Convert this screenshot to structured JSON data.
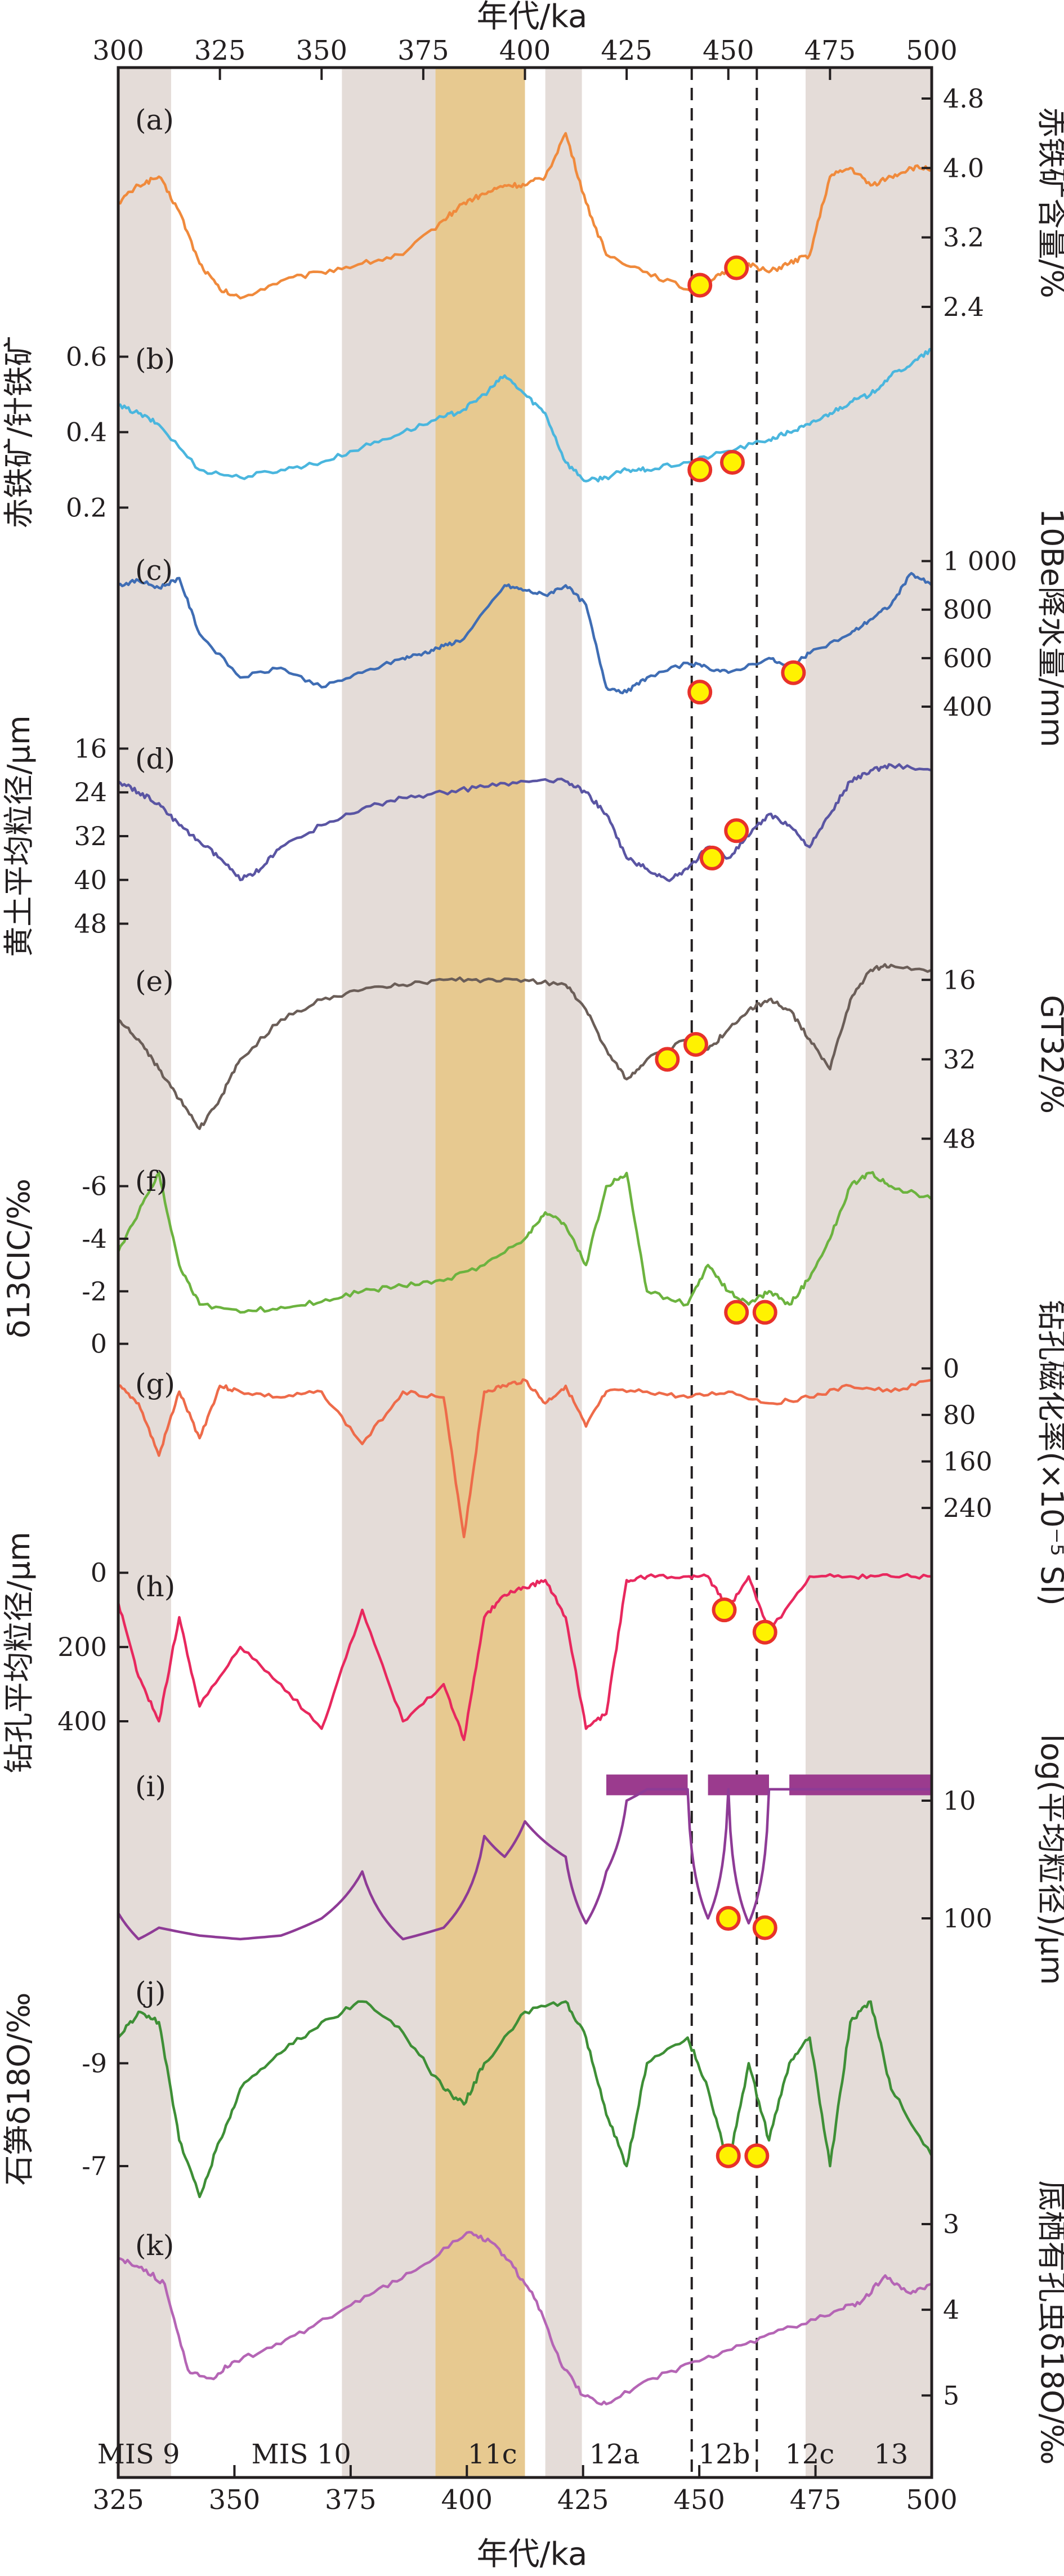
{
  "chart_data": {
    "type": "line",
    "title": "",
    "top_axis": {
      "label": "年代/ka",
      "range": [
        300,
        500
      ],
      "ticks": [
        "300",
        "325",
        "350",
        "375",
        "400",
        "425",
        "450",
        "475",
        "500"
      ],
      "tick_values": [
        300,
        325,
        350,
        375,
        400,
        425,
        450,
        475,
        500
      ]
    },
    "bottom_axis": {
      "label": "年代/ka",
      "range": [
        325,
        500
      ],
      "ticks": [
        "325",
        "350",
        "375",
        "400",
        "425",
        "450",
        "475",
        "500"
      ],
      "tick_values": [
        325,
        350,
        375,
        400,
        425,
        450,
        475,
        500
      ]
    },
    "shaded_bands": [
      {
        "name": "MIS 9",
        "type": "interglacial",
        "from": 300,
        "to": 313
      },
      {
        "name": "MIS 10",
        "type": "glacial",
        "from": 355,
        "to": 378
      },
      {
        "name": "11c",
        "type": "highlight",
        "from": 378,
        "to": 400
      },
      {
        "name": "12a",
        "type": "interglacial",
        "from": 405,
        "to": 414
      },
      {
        "name": "13",
        "type": "interglacial",
        "from": 469,
        "to": 500
      }
    ],
    "dashed_lines": [
      441,
      457
    ],
    "stage_labels": [
      "MIS 9",
      "MIS 10",
      "11c",
      "12a",
      "12b",
      "12c",
      "13"
    ],
    "series": [
      {
        "id": "a",
        "letter": "(a)",
        "name": "赤铁矿含量/%",
        "axis_side": "right",
        "color": "#f08a3c",
        "ticks": [
          "4.8",
          "4.0",
          "3.2",
          "2.4"
        ],
        "tick_values": [
          4.8,
          4.0,
          3.2,
          2.4
        ],
        "x": [
          300,
          305,
          310,
          315,
          320,
          325,
          330,
          340,
          350,
          360,
          370,
          380,
          385,
          390,
          395,
          400,
          405,
          410,
          415,
          420,
          430,
          440,
          445,
          450,
          455,
          460,
          465,
          470,
          475,
          480,
          485,
          490,
          495,
          500
        ],
        "values": [
          3.6,
          3.8,
          3.9,
          3.5,
          2.9,
          2.6,
          2.5,
          2.7,
          2.8,
          2.9,
          3.0,
          3.4,
          3.6,
          3.7,
          3.8,
          3.8,
          3.9,
          4.4,
          3.6,
          3.0,
          2.8,
          2.6,
          2.7,
          2.8,
          2.9,
          2.8,
          2.9,
          3.0,
          3.9,
          4.0,
          3.8,
          3.9,
          4.0,
          4.0
        ],
        "markers": [
          {
            "x": 443,
            "v": 2.65
          },
          {
            "x": 452,
            "v": 2.85
          }
        ]
      },
      {
        "id": "b",
        "letter": "(b)",
        "name": "赤铁矿/针铁矿",
        "axis_side": "left",
        "color": "#4ab6de",
        "ticks": [
          "0.6",
          "0.4",
          "0.2"
        ],
        "tick_values": [
          0.6,
          0.4,
          0.2
        ],
        "x": [
          300,
          305,
          310,
          320,
          330,
          340,
          350,
          360,
          370,
          380,
          385,
          390,
          395,
          400,
          405,
          410,
          415,
          420,
          425,
          430,
          440,
          450,
          460,
          465,
          470,
          475,
          480,
          485,
          490,
          495,
          500
        ],
        "values": [
          0.47,
          0.45,
          0.42,
          0.3,
          0.28,
          0.3,
          0.32,
          0.36,
          0.4,
          0.44,
          0.46,
          0.5,
          0.55,
          0.5,
          0.45,
          0.32,
          0.27,
          0.28,
          0.3,
          0.3,
          0.32,
          0.35,
          0.38,
          0.4,
          0.42,
          0.45,
          0.48,
          0.5,
          0.55,
          0.58,
          0.62
        ],
        "markers": [
          {
            "x": 443,
            "v": 0.3
          },
          {
            "x": 451,
            "v": 0.32
          }
        ]
      },
      {
        "id": "c",
        "letter": "(c)",
        "name": "10Be降水量/mm",
        "axis_side": "right",
        "color": "#3f6db4",
        "ticks": [
          "1 000",
          "800",
          "600",
          "400"
        ],
        "tick_values": [
          1000,
          800,
          600,
          400
        ],
        "x": [
          300,
          305,
          310,
          315,
          320,
          330,
          340,
          350,
          360,
          370,
          375,
          380,
          385,
          395,
          400,
          405,
          410,
          415,
          420,
          425,
          430,
          440,
          445,
          450,
          460,
          465,
          470,
          480,
          485,
          490,
          495,
          500
        ],
        "values": [
          900,
          920,
          890,
          930,
          700,
          520,
          560,
          480,
          540,
          600,
          620,
          650,
          680,
          900,
          880,
          860,
          900,
          820,
          480,
          460,
          520,
          580,
          560,
          540,
          600,
          560,
          620,
          700,
          760,
          820,
          950,
          900
        ],
        "markers": [
          {
            "x": 443,
            "v": 460
          },
          {
            "x": 466,
            "v": 540
          }
        ]
      },
      {
        "id": "d",
        "letter": "(d)",
        "name": "黄土平均粒径/μm",
        "axis_side": "left",
        "color": "#5a55a3",
        "ticks": [
          "16",
          "24",
          "32",
          "40",
          "48"
        ],
        "tick_values": [
          16,
          24,
          32,
          40,
          48
        ],
        "x": [
          300,
          305,
          310,
          315,
          320,
          325,
          330,
          335,
          340,
          350,
          360,
          370,
          380,
          390,
          400,
          410,
          415,
          420,
          425,
          430,
          435,
          440,
          445,
          450,
          455,
          460,
          465,
          470,
          475,
          480,
          485,
          490,
          500
        ],
        "values": [
          22,
          24,
          26,
          30,
          33,
          36,
          40,
          38,
          34,
          30,
          27,
          25,
          24,
          23,
          22,
          22,
          24,
          28,
          36,
          38,
          40,
          38,
          34,
          36,
          32,
          28,
          30,
          34,
          28,
          22,
          20,
          19,
          20
        ],
        "markers": [
          {
            "x": 446,
            "v": 36
          },
          {
            "x": 452,
            "v": 31
          }
        ]
      },
      {
        "id": "e",
        "letter": "(e)",
        "name": "GT32/%",
        "axis_side": "right",
        "color": "#6b5e58",
        "ticks": [
          "16",
          "32",
          "48"
        ],
        "tick_values": [
          16,
          32,
          48
        ],
        "x": [
          300,
          305,
          310,
          315,
          320,
          325,
          330,
          340,
          350,
          360,
          370,
          380,
          390,
          400,
          410,
          415,
          420,
          425,
          430,
          440,
          445,
          450,
          455,
          460,
          465,
          470,
          475,
          480,
          485,
          490,
          500
        ],
        "values": [
          24,
          28,
          34,
          40,
          46,
          40,
          32,
          24,
          20,
          18,
          17,
          16,
          16,
          16,
          17,
          22,
          30,
          36,
          32,
          28,
          30,
          26,
          22,
          20,
          22,
          28,
          34,
          20,
          14,
          13,
          14
        ],
        "markers": [
          {
            "x": 435,
            "v": 32
          },
          {
            "x": 442,
            "v": 29
          }
        ]
      },
      {
        "id": "f",
        "letter": "(f)",
        "name": "δ13CIC/‰",
        "axis_side": "left",
        "color": "#6cb33f",
        "ticks": [
          "-6",
          "-4",
          "-2",
          "0"
        ],
        "tick_values": [
          -6,
          -4,
          -2,
          0
        ],
        "x": [
          300,
          305,
          310,
          315,
          320,
          330,
          340,
          350,
          360,
          370,
          380,
          390,
          400,
          405,
          410,
          415,
          420,
          425,
          430,
          440,
          445,
          450,
          455,
          460,
          465,
          470,
          475,
          480,
          485,
          490,
          500
        ],
        "values": [
          -3.5,
          -5,
          -6.5,
          -3,
          -1.5,
          -1.2,
          -1.4,
          -1.6,
          -2.0,
          -2.2,
          -2.4,
          -3,
          -4,
          -5,
          -4.5,
          -3,
          -6,
          -6.5,
          -2,
          -1.5,
          -3,
          -2,
          -1.5,
          -2,
          -1.5,
          -2.5,
          -4,
          -6,
          -6.5,
          -6,
          -5.5
        ],
        "markers": [
          {
            "x": 452,
            "v": -1.2
          },
          {
            "x": 459,
            "v": -1.2
          }
        ]
      },
      {
        "id": "g",
        "letter": "(g)",
        "name": "钻孔磁化率(×10⁻⁵ SI)",
        "axis_side": "right",
        "color": "#ee6b4a",
        "ticks": [
          "0",
          "80",
          "160",
          "240"
        ],
        "tick_values": [
          0,
          80,
          160,
          240
        ],
        "x": [
          300,
          305,
          310,
          315,
          320,
          325,
          330,
          340,
          350,
          360,
          370,
          380,
          385,
          390,
          395,
          400,
          405,
          410,
          415,
          420,
          430,
          440,
          450,
          460,
          470,
          480,
          490,
          500
        ],
        "values": [
          30,
          60,
          150,
          40,
          120,
          30,
          40,
          50,
          40,
          130,
          40,
          50,
          290,
          40,
          30,
          20,
          60,
          30,
          100,
          40,
          40,
          50,
          40,
          60,
          50,
          30,
          40,
          20
        ],
        "markers": []
      },
      {
        "id": "h",
        "letter": "(h)",
        "name": "钻孔平均粒径/μm",
        "axis_side": "left",
        "color": "#e8285e",
        "ticks": [
          "0",
          "200",
          "400"
        ],
        "tick_values": [
          0,
          200,
          400
        ],
        "x": [
          300,
          305,
          310,
          315,
          320,
          330,
          340,
          350,
          360,
          370,
          380,
          385,
          390,
          395,
          400,
          405,
          410,
          415,
          420,
          425,
          430,
          440,
          445,
          450,
          455,
          460,
          470,
          480,
          490,
          500
        ],
        "values": [
          80,
          280,
          400,
          120,
          360,
          200,
          300,
          420,
          100,
          400,
          300,
          450,
          120,
          60,
          40,
          20,
          120,
          420,
          380,
          20,
          10,
          10,
          10,
          100,
          10,
          160,
          10,
          10,
          10,
          10
        ],
        "markers": [
          {
            "x": 449,
            "v": 100
          },
          {
            "x": 459,
            "v": 160
          }
        ]
      },
      {
        "id": "i",
        "letter": "(i)",
        "name": "log(平均粒径)/μm",
        "axis_side": "right",
        "color": "#8e3b96",
        "ticks": [
          "10",
          "100"
        ],
        "tick_values": [
          10,
          100
        ],
        "x": [
          300,
          305,
          310,
          320,
          330,
          340,
          350,
          360,
          370,
          380,
          390,
          395,
          400,
          410,
          415,
          420,
          425,
          430,
          440,
          445,
          450,
          455,
          460,
          470,
          480,
          490,
          500
        ],
        "values": [
          90,
          150,
          120,
          140,
          150,
          140,
          100,
          40,
          150,
          120,
          20,
          30,
          15,
          30,
          110,
          40,
          10,
          8,
          8,
          100,
          8,
          110,
          8,
          8,
          8,
          8,
          8
        ],
        "markers": [
          {
            "x": 450,
            "v": 100
          },
          {
            "x": 459,
            "v": 120
          }
        ]
      },
      {
        "id": "j",
        "letter": "(j)",
        "name": "石笋δ18O/‰",
        "axis_side": "left",
        "color": "#3e8f36",
        "ticks": [
          "-9",
          "-7"
        ],
        "tick_values": [
          -9,
          -7
        ],
        "x": [
          300,
          305,
          310,
          315,
          320,
          325,
          330,
          340,
          350,
          360,
          370,
          380,
          385,
          390,
          400,
          410,
          415,
          420,
          425,
          430,
          440,
          445,
          450,
          455,
          460,
          465,
          470,
          475,
          480,
          485,
          490,
          500
        ],
        "values": [
          -9.5,
          -10,
          -9.8,
          -7.5,
          -6.4,
          -7.5,
          -8.5,
          -9.2,
          -9.8,
          -10.2,
          -9.6,
          -8.5,
          -8.2,
          -9.0,
          -10.0,
          -10.2,
          -9.5,
          -8.0,
          -7.0,
          -9.0,
          -9.5,
          -8.5,
          -7.0,
          -9.0,
          -7.5,
          -9.0,
          -9.5,
          -7.0,
          -9.8,
          -10.2,
          -8.5,
          -7.2
        ],
        "markers": [
          {
            "x": 450,
            "v": -7.2
          },
          {
            "x": 457,
            "v": -7.2
          }
        ]
      },
      {
        "id": "k",
        "letter": "(k)",
        "name": "底栖有孔虫δ18O/‰",
        "axis_side": "right",
        "color": "#b565b5",
        "ticks": [
          "3",
          "4",
          "5"
        ],
        "tick_values": [
          3,
          4,
          5
        ],
        "x": [
          325,
          330,
          335,
          340,
          345,
          350,
          360,
          370,
          380,
          390,
          400,
          405,
          410,
          415,
          420,
          425,
          430,
          440,
          450,
          460,
          470,
          480,
          485,
          490,
          495,
          500
        ],
        "values": [
          3.4,
          3.5,
          3.7,
          4.7,
          4.8,
          4.6,
          4.4,
          4.1,
          3.8,
          3.5,
          3.1,
          3.2,
          3.5,
          3.9,
          4.6,
          5.0,
          5.1,
          4.8,
          4.6,
          4.4,
          4.2,
          4.0,
          3.9,
          3.6,
          3.8,
          3.7
        ],
        "markers": []
      }
    ]
  }
}
